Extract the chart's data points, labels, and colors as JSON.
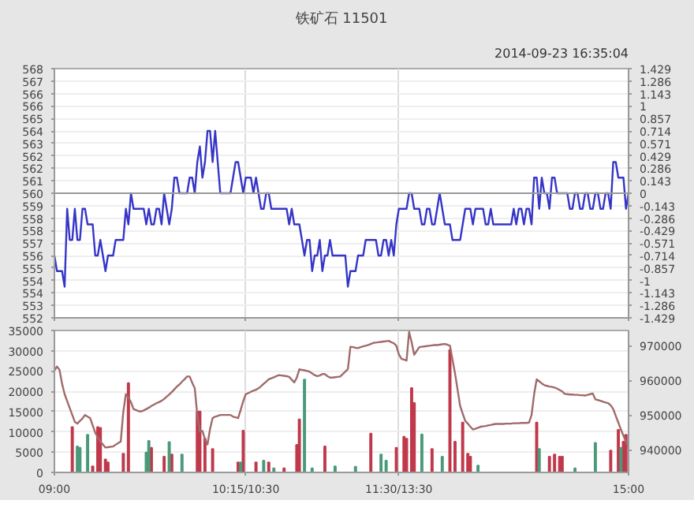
{
  "chart_data": [
    {
      "type": "line",
      "title": "铁矿石 11501",
      "annotations": [
        "2014-09-23 16:35:04"
      ],
      "categories": [
        null,
        null,
        null,
        null,
        null,
        null,
        null,
        null,
        null,
        null,
        null,
        null,
        null,
        null,
        null,
        null,
        null,
        null,
        null,
        null,
        null,
        null,
        null,
        null,
        null,
        null,
        null,
        null,
        null,
        null,
        null,
        null,
        null,
        null,
        null,
        null,
        null,
        null,
        null,
        null,
        null,
        null,
        null,
        null,
        null,
        null,
        null,
        null,
        null,
        null,
        null,
        null,
        null,
        null,
        null,
        null,
        null,
        null,
        null,
        null,
        null,
        null,
        null,
        null,
        null,
        null,
        null,
        null,
        null,
        null,
        null,
        null,
        null,
        null,
        null,
        null,
        null,
        null,
        null,
        null,
        null,
        null,
        null,
        null,
        null,
        null,
        null,
        null,
        null,
        null,
        null,
        null,
        null,
        null,
        null,
        null,
        null,
        null,
        null,
        null,
        null,
        null,
        null,
        null,
        null,
        null,
        null,
        null,
        null,
        null,
        null,
        null,
        null,
        null,
        null,
        null,
        null,
        null,
        null,
        null,
        null,
        null,
        null,
        null,
        null,
        null,
        null,
        null,
        null,
        null,
        null,
        null,
        null,
        null,
        null,
        null,
        null,
        null,
        null,
        null,
        null,
        null,
        null,
        null,
        null,
        null,
        null,
        null,
        null,
        null,
        null,
        null,
        null,
        null,
        null,
        null,
        null,
        null,
        null,
        null,
        null,
        null,
        null,
        null,
        null,
        null,
        null,
        null,
        null,
        null,
        null,
        null,
        null,
        null,
        null,
        null,
        null,
        null,
        null,
        null,
        null,
        null,
        null,
        null,
        null,
        null,
        null,
        null,
        null,
        null,
        null,
        null,
        null,
        null,
        null,
        null,
        null,
        null,
        null,
        null,
        null,
        null,
        null,
        null,
        null,
        null,
        null,
        null,
        null,
        null,
        null,
        null,
        null,
        null,
        null,
        null,
        null,
        null,
        null,
        null,
        null,
        null,
        null,
        null,
        null,
        null
      ],
      "series": [
        {
          "color": "#3535c8",
          "values": [
            556,
            555,
            555,
            555,
            554,
            559,
            557,
            557,
            559,
            557,
            557,
            559,
            559,
            558,
            558,
            558,
            556,
            556,
            557,
            556,
            555,
            556,
            556,
            556,
            557,
            557,
            557,
            557,
            559,
            558,
            560,
            559,
            559,
            559,
            559,
            559,
            558,
            559,
            558,
            558,
            559,
            559,
            558,
            560,
            559,
            558,
            559,
            561,
            561,
            560,
            560,
            560,
            560,
            561,
            561,
            560,
            562,
            563,
            561,
            562,
            564,
            564,
            562,
            564,
            562,
            560,
            560,
            560,
            560,
            560,
            561,
            562,
            562,
            561,
            560,
            561,
            561,
            561,
            560,
            561,
            560,
            559,
            559,
            560,
            560,
            559,
            559,
            559,
            559,
            559,
            559,
            559,
            558,
            559,
            558,
            558,
            558,
            557,
            556,
            557,
            557,
            555,
            556,
            556,
            557,
            555,
            556,
            556,
            557,
            556,
            556,
            556,
            556,
            556,
            556,
            554,
            555,
            555,
            555,
            556,
            556,
            556,
            557,
            557,
            557,
            557,
            557,
            556,
            556,
            557,
            557,
            556,
            557,
            556,
            558,
            559,
            559,
            559,
            559,
            560,
            560,
            559,
            559,
            559,
            558,
            558,
            559,
            559,
            558,
            558,
            559,
            560,
            559,
            558,
            558,
            558,
            557,
            557,
            557,
            557,
            558,
            559,
            559,
            559,
            558,
            559,
            559,
            559,
            559,
            558,
            558,
            559,
            558,
            558,
            558,
            558,
            558,
            558,
            558,
            558,
            559,
            558,
            559,
            559,
            558,
            559,
            559,
            558,
            561,
            561,
            559,
            561,
            560,
            560,
            559,
            561,
            561,
            560,
            560,
            560,
            560,
            560,
            559,
            559,
            560,
            560,
            559,
            559,
            560,
            560,
            559,
            559,
            560,
            560,
            559,
            559,
            560,
            560,
            559,
            562,
            562,
            561,
            561,
            561,
            559,
            560
          ]
        }
      ],
      "ylim": [
        552,
        568
      ],
      "yticks": [
        {
          "value": 552,
          "label": "552"
        },
        {
          "value": 552.8,
          "label": "553"
        },
        {
          "value": 553.6,
          "label": "554"
        },
        {
          "value": 554.4,
          "label": "554"
        },
        {
          "value": 555.2,
          "label": "555"
        },
        {
          "value": 556,
          "label": "556"
        },
        {
          "value": 556.8,
          "label": "557"
        },
        {
          "value": 557.6,
          "label": "558"
        },
        {
          "value": 558.4,
          "label": "558"
        },
        {
          "value": 559.2,
          "label": "559"
        },
        {
          "value": 560,
          "label": "560"
        },
        {
          "value": 560.8,
          "label": "561"
        },
        {
          "value": 561.6,
          "label": "562"
        },
        {
          "value": 562.4,
          "label": "562"
        },
        {
          "value": 563.2,
          "label": "563"
        },
        {
          "value": 564,
          "label": "564"
        },
        {
          "value": 564.8,
          "label": "565"
        },
        {
          "value": 565.6,
          "label": "566"
        },
        {
          "value": 566.4,
          "label": "566"
        },
        {
          "value": 567.2,
          "label": "567"
        },
        {
          "value": 568,
          "label": "568"
        }
      ],
      "y2lim": [
        -1.429,
        1.429
      ],
      "y2ticks": [
        -1.429,
        -1.286,
        -1.143,
        -1,
        -0.857,
        -0.714,
        -0.571,
        -0.429,
        -0.286,
        -0.143,
        0,
        0.143,
        0.286,
        0.429,
        0.571,
        0.714,
        0.857,
        1,
        1.143,
        1.286,
        1.429
      ],
      "ref_lines": [
        {
          "axis": "y",
          "value": 560,
          "color": "#999999"
        }
      ],
      "grid": true,
      "tick_labels": "y"
    },
    {
      "type": "bar",
      "categories": [
        "09:00",
        null,
        null,
        null,
        null,
        null,
        null,
        null,
        null,
        null,
        null,
        null,
        null,
        null,
        null,
        null,
        null,
        null,
        null,
        null,
        null,
        null,
        null,
        null,
        null,
        null,
        null,
        null,
        null,
        null,
        null,
        null,
        null,
        null,
        null,
        null,
        null,
        null,
        null,
        null,
        null,
        null,
        null,
        null,
        null,
        null,
        null,
        null,
        null,
        null,
        null,
        null,
        null,
        null,
        null,
        null,
        null,
        null,
        null,
        null,
        null,
        null,
        null,
        null,
        null,
        null,
        null,
        null,
        null,
        null,
        null,
        null,
        null,
        null,
        null,
        "10:15/10:30",
        null,
        null,
        null,
        null,
        null,
        null,
        null,
        null,
        null,
        null,
        null,
        null,
        null,
        null,
        null,
        null,
        null,
        null,
        null,
        null,
        null,
        null,
        null,
        null,
        null,
        null,
        null,
        null,
        null,
        null,
        null,
        null,
        null,
        null,
        null,
        null,
        null,
        null,
        null,
        null,
        null,
        null,
        null,
        null,
        null,
        null,
        null,
        null,
        null,
        null,
        null,
        null,
        null,
        null,
        null,
        null,
        null,
        null,
        null,
        "11:30/13:30",
        null,
        null,
        null,
        null,
        null,
        null,
        null,
        null,
        null,
        null,
        null,
        null,
        null,
        null,
        null,
        null,
        null,
        null,
        null,
        null,
        null,
        null,
        null,
        null,
        null,
        null,
        null,
        null,
        null,
        null,
        null,
        null,
        null,
        null,
        null,
        null,
        null,
        null,
        null,
        null,
        null,
        null,
        null,
        null,
        null,
        null,
        null,
        null,
        null,
        null,
        null,
        null,
        null,
        null,
        null,
        null,
        null,
        null,
        null,
        null,
        null,
        null,
        null,
        null,
        null,
        null,
        null,
        null,
        null,
        null,
        null,
        null,
        null,
        null,
        null,
        null,
        null,
        null,
        null,
        null,
        null,
        null,
        null,
        null,
        null,
        null,
        null,
        null,
        null,
        "15:00"
      ],
      "series": [
        {
          "type": "bar",
          "color": "#c0394b",
          "values": [
            null,
            null,
            null,
            null,
            null,
            null,
            null,
            11200,
            null,
            null,
            null,
            null,
            null,
            null,
            null,
            1500,
            null,
            11200,
            11000,
            null,
            3200,
            2500,
            null,
            null,
            null,
            null,
            null,
            4600,
            null,
            22000,
            null,
            null,
            null,
            null,
            null,
            null,
            null,
            null,
            6100,
            null,
            null,
            null,
            null,
            3900,
            null,
            null,
            4400,
            null,
            null,
            null,
            null,
            null,
            null,
            null,
            null,
            null,
            15000,
            15000,
            null,
            8300,
            null,
            null,
            5800,
            null,
            null,
            null,
            null,
            null,
            null,
            null,
            null,
            null,
            2500,
            null,
            10300,
            null,
            null,
            null,
            null,
            2500,
            null,
            null,
            null,
            null,
            2500,
            null,
            null,
            null,
            null,
            null,
            1000,
            null,
            null,
            null,
            null,
            6800,
            13100,
            null,
            null,
            null,
            null,
            null,
            null,
            null,
            null,
            null,
            6400,
            null,
            null,
            null,
            null,
            null,
            null,
            null,
            null,
            null,
            null,
            null,
            null,
            null,
            null,
            null,
            null,
            null,
            9600,
            null,
            null,
            null,
            null,
            null,
            null,
            null,
            null,
            null,
            6100,
            null,
            null,
            8800,
            8300,
            null,
            20800,
            17100,
            null,
            null,
            null,
            null,
            null,
            null,
            5800,
            null,
            null,
            null,
            null,
            null,
            null,
            30200,
            null,
            7600,
            null,
            null,
            12300,
            null,
            4600,
            3900,
            null,
            null,
            null,
            null,
            null,
            null,
            null,
            null,
            null,
            null,
            null,
            null,
            null,
            null,
            null,
            null,
            null,
            null,
            null,
            null,
            null,
            null,
            null,
            null,
            null,
            12300,
            null,
            null,
            null,
            null,
            3900,
            null,
            4400,
            null,
            3900,
            3900,
            null,
            null,
            null,
            null,
            null,
            null,
            null,
            null,
            null,
            null,
            null,
            null,
            null,
            null,
            null,
            null,
            null,
            null,
            5400,
            null,
            null,
            10500,
            null,
            7600,
            9300,
            null
          ]
        },
        {
          "type": "bar",
          "color": "#4a9a7a",
          "values": [
            null,
            null,
            null,
            null,
            null,
            null,
            null,
            null,
            null,
            6400,
            6100,
            null,
            null,
            9300,
            null,
            null,
            null,
            null,
            null,
            null,
            null,
            null,
            null,
            null,
            null,
            null,
            null,
            null,
            null,
            null,
            null,
            null,
            null,
            null,
            null,
            null,
            4900,
            7800,
            null,
            null,
            null,
            null,
            null,
            null,
            null,
            7500,
            null,
            null,
            null,
            null,
            4400,
            null,
            null,
            null,
            null,
            null,
            null,
            null,
            null,
            null,
            null,
            null,
            null,
            null,
            null,
            null,
            null,
            null,
            null,
            null,
            null,
            null,
            null,
            2500,
            null,
            null,
            null,
            null,
            null,
            null,
            null,
            null,
            2900,
            null,
            null,
            null,
            1000,
            null,
            null,
            null,
            null,
            null,
            null,
            null,
            null,
            null,
            null,
            null,
            22900,
            null,
            null,
            1000,
            null,
            null,
            null,
            null,
            null,
            null,
            null,
            null,
            1500,
            null,
            null,
            null,
            null,
            null,
            null,
            null,
            1400,
            null,
            null,
            null,
            null,
            null,
            null,
            null,
            null,
            null,
            4400,
            null,
            2900,
            null,
            null,
            null,
            null,
            null,
            null,
            null,
            null,
            null,
            null,
            null,
            null,
            null,
            9400,
            null,
            null,
            null,
            null,
            null,
            null,
            null,
            3900,
            null,
            null,
            null,
            null,
            null,
            null,
            null,
            null,
            null,
            null,
            null,
            null,
            null,
            1700,
            null,
            null,
            null,
            null,
            null,
            null,
            null,
            null,
            null,
            null,
            null,
            null,
            null,
            null,
            null,
            null,
            null,
            null,
            null,
            null,
            null,
            null,
            null,
            5800,
            null,
            null,
            null,
            null,
            null,
            null,
            null,
            null,
            null,
            null,
            null,
            null,
            null,
            1000,
            null,
            null,
            null,
            null,
            null,
            null,
            null,
            7300,
            null,
            null,
            null,
            null,
            null,
            null,
            null,
            null,
            null,
            6100,
            null,
            null,
            null
          ]
        },
        {
          "type": "line",
          "axis": "y2",
          "color": "#a06a6a",
          "values": [
            962800,
            964000,
            963000,
            959000,
            956000,
            954000,
            952000,
            950000,
            948000,
            947500,
            948300,
            949000,
            950000,
            949500,
            949100,
            947000,
            944900,
            943500,
            942300,
            941500,
            940600,
            940700,
            940800,
            940900,
            941400,
            941900,
            942300,
            950900,
            956000,
            955000,
            953700,
            951700,
            951400,
            951100,
            951000,
            951300,
            951700,
            952100,
            952600,
            953000,
            953400,
            953700,
            954100,
            954600,
            955300,
            955900,
            956600,
            957400,
            958200,
            958800,
            959600,
            960300,
            961100,
            961100,
            959300,
            957700,
            950000,
            945200,
            945400,
            943000,
            941500,
            946000,
            949100,
            949500,
            949700,
            950000,
            950000,
            950000,
            950000,
            950000,
            949500,
            949300,
            949100,
            951500,
            954000,
            956000,
            956300,
            956700,
            957000,
            957300,
            957700,
            958300,
            959000,
            959600,
            960300,
            960600,
            960900,
            961200,
            961500,
            961400,
            961300,
            961200,
            961000,
            960200,
            959400,
            960800,
            963200,
            963000,
            962900,
            962700,
            962500,
            962000,
            961500,
            961200,
            961400,
            961800,
            961800,
            961200,
            960800,
            960800,
            960900,
            961000,
            961100,
            961800,
            962500,
            963200,
            969700,
            969600,
            969400,
            969300,
            969600,
            969800,
            970000,
            970200,
            970500,
            970800,
            970900,
            971000,
            971100,
            971200,
            971300,
            971400,
            971000,
            970700,
            970000,
            967500,
            966200,
            966000,
            965700,
            974000,
            971000,
            967400,
            968500,
            969600,
            969700,
            969800,
            969900,
            970000,
            970100,
            970200,
            970200,
            970300,
            970400,
            970500,
            970300,
            970000,
            966000,
            962000,
            957300,
            952600,
            950400,
            948300,
            947500,
            946600,
            945800,
            946000,
            946300,
            946600,
            946700,
            946800,
            947000,
            947100,
            947300,
            947400,
            947400,
            947400,
            947400,
            947500,
            947500,
            947500,
            947600,
            947600,
            947600,
            947700,
            947700,
            947700,
            947800,
            950000,
            956000,
            960300,
            959700,
            959100,
            958600,
            958400,
            958200,
            958100,
            957900,
            957600,
            957200,
            956800,
            956100,
            956000,
            955900,
            955900,
            955800,
            955800,
            955700,
            955700,
            955600,
            955800,
            956000,
            956200,
            954500,
            954300,
            954100,
            953800,
            953600,
            953400,
            952800,
            951700,
            949700,
            947800,
            945800,
            944000,
            942300,
            940600
          ]
        }
      ],
      "ylim": [
        0,
        35000
      ],
      "yticks": [
        0,
        5000,
        10000,
        15000,
        20000,
        25000,
        30000,
        35000
      ],
      "y2lim": [
        933400,
        974400
      ],
      "y2ticks": [
        940000,
        950000,
        960000,
        970000
      ],
      "grid": true
    }
  ]
}
